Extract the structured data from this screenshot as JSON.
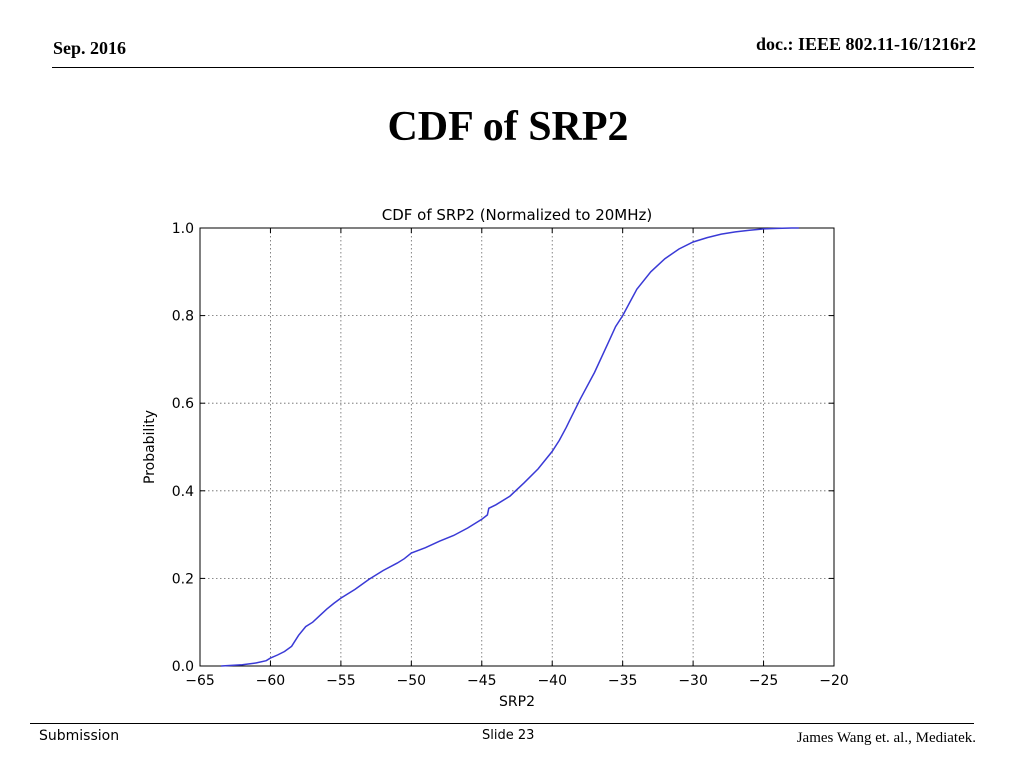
{
  "header": {
    "date": "Sep. 2016",
    "doc": "doc.: IEEE 802.11-16/1216r2"
  },
  "slide": {
    "title": "CDF of SRP2"
  },
  "footer": {
    "left": "Submission",
    "center": "Slide 23",
    "right": "James Wang et. al., Mediatek."
  },
  "chart_data": {
    "type": "line",
    "title": "CDF of SRP2 (Normalized to 20MHz)",
    "xlabel": "SRP2",
    "ylabel": "Probability",
    "xlim": [
      -65,
      -20
    ],
    "ylim": [
      0.0,
      1.0
    ],
    "xticks": [
      -65,
      -60,
      -55,
      -50,
      -45,
      -40,
      -35,
      -30,
      -25,
      -20
    ],
    "yticks": [
      0.0,
      0.2,
      0.4,
      0.6,
      0.8,
      1.0
    ],
    "xtick_labels": [
      "−65",
      "−60",
      "−55",
      "−50",
      "−45",
      "−40",
      "−35",
      "−30",
      "−25",
      "−20"
    ],
    "ytick_labels": [
      "0.0",
      "0.2",
      "0.4",
      "0.6",
      "0.8",
      "1.0"
    ],
    "grid": true,
    "line_color": "#3a3ad6",
    "series": [
      {
        "x": [
          -63.5,
          -62,
          -61,
          -60.3,
          -60,
          -59.5,
          -59,
          -58.5,
          -58,
          -57.5,
          -57,
          -56.5,
          -56,
          -55.5,
          -55,
          -54,
          -53,
          -52,
          -51,
          -50.5,
          -50,
          -49,
          -48,
          -47,
          -46,
          -45,
          -44.6,
          -44.5,
          -44,
          -43,
          -42,
          -41,
          -40,
          -39.5,
          -39,
          -38.8,
          -38,
          -37,
          -36,
          -35.5,
          -35,
          -34.5,
          -34,
          -33,
          -32,
          -31,
          -30,
          -29,
          -28,
          -27,
          -26,
          -25,
          -24,
          -23,
          -22.5
        ],
        "y": [
          0.0,
          0.003,
          0.007,
          0.012,
          0.018,
          0.025,
          0.033,
          0.045,
          0.07,
          0.09,
          0.1,
          0.115,
          0.13,
          0.143,
          0.155,
          0.175,
          0.198,
          0.218,
          0.235,
          0.245,
          0.258,
          0.27,
          0.285,
          0.298,
          0.315,
          0.335,
          0.345,
          0.36,
          0.368,
          0.388,
          0.418,
          0.45,
          0.49,
          0.515,
          0.545,
          0.558,
          0.61,
          0.67,
          0.74,
          0.775,
          0.8,
          0.83,
          0.86,
          0.9,
          0.93,
          0.952,
          0.968,
          0.978,
          0.986,
          0.991,
          0.995,
          0.998,
          0.999,
          1.0,
          1.0
        ]
      }
    ]
  }
}
